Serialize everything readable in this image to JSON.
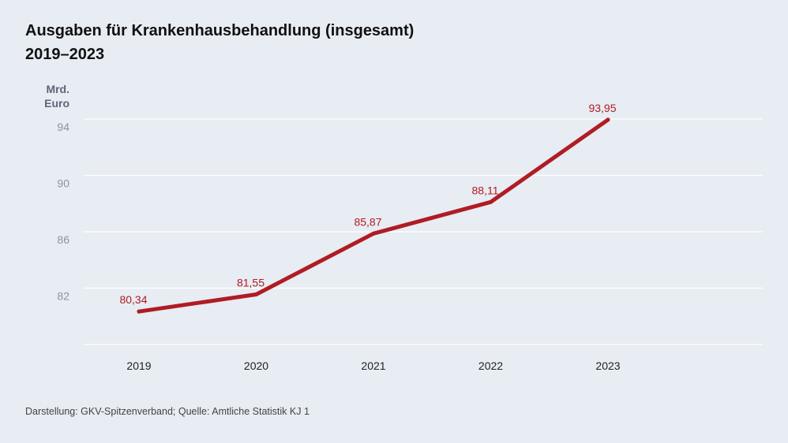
{
  "header": {
    "title_line1": "Ausgaben für Krankenhausbehandlung (insgesamt)",
    "title_line2": "2019–2023",
    "unit_line1": "Mrd.",
    "unit_line2": "Euro"
  },
  "footer": {
    "source": "Darstellung: GKV-Spitzenverband; Quelle: Amtliche Statistik KJ 1"
  },
  "colors": {
    "background": "#e8ecf3",
    "line": "#b01c24",
    "grid": "#ffffff",
    "tick_label": "#8a94a3",
    "data_label": "#b01c24"
  },
  "chart_data": {
    "type": "line",
    "categories": [
      "2019",
      "2020",
      "2021",
      "2022",
      "2023"
    ],
    "values": [
      80.34,
      81.55,
      85.87,
      88.11,
      93.95
    ],
    "value_labels": [
      "80,34",
      "81,55",
      "85,87",
      "88,11",
      "93,95"
    ],
    "yticks": [
      82,
      86,
      90,
      94
    ],
    "ylim": [
      78,
      94
    ],
    "ylabel": "Mrd. Euro",
    "grid": true,
    "legend": "none"
  }
}
